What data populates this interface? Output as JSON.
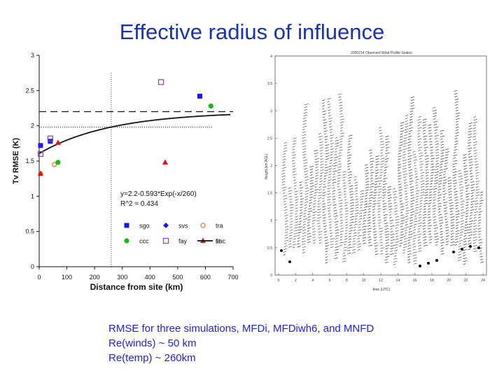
{
  "slide": {
    "title": "Effective radius of influence",
    "caption": [
      "RMSE for three simulations, MFDi, MFDiwh6, and MNFD",
      "Re(winds) ~ 50 km",
      "Re(temp) ~ 260km"
    ]
  },
  "chart_data": [
    {
      "type": "scatter",
      "xlabel": "Distance from site (km)",
      "ylabel": "Tv RMSE (K)",
      "xlim": [
        0,
        700
      ],
      "ylim": [
        0,
        3
      ],
      "xticks": [
        "0",
        "100",
        "200",
        "300",
        "400",
        "500",
        "600",
        "700"
      ],
      "yticks": [
        "0",
        "0.5",
        "1",
        "1.5",
        "2",
        "2.5",
        "3"
      ],
      "grid": false,
      "legend_position": "lower-right",
      "fit_equation": "y=2.2-0.593*Exp(-x/260)",
      "r_squared": "R^2 = 0.434",
      "dashed_levels": [
        2.2
      ],
      "reference": {
        "x": 260,
        "y": 1.98
      },
      "series": [
        {
          "name": "sgo",
          "marker": "square",
          "color": "#1a1aee",
          "points": [
            [
              5,
              1.72
            ],
            [
              40,
              1.78
            ],
            [
              580,
              2.42
            ]
          ]
        },
        {
          "name": "svs",
          "marker": "diamond",
          "color": "#1a1aee",
          "points": []
        },
        {
          "name": "tra",
          "marker": "circle-open",
          "color": "#e07820",
          "points": [
            [
              55,
              1.45
            ],
            [
              5,
              1.32
            ]
          ]
        },
        {
          "name": "ccc",
          "marker": "circle",
          "color": "#18b818",
          "points": [
            [
              68,
              1.48
            ],
            [
              620,
              2.28
            ]
          ]
        },
        {
          "name": "fay",
          "marker": "square-open",
          "color": "#8844aa",
          "points": [
            [
              440,
              2.62
            ],
            [
              40,
              1.82
            ],
            [
              5,
              1.6
            ]
          ]
        },
        {
          "name": "sac",
          "marker": "triangle",
          "color": "#d41818",
          "points": [
            [
              68,
              1.76
            ],
            [
              455,
              1.48
            ],
            [
              5,
              1.32
            ]
          ]
        }
      ],
      "fit": {
        "name": "fit",
        "a": 2.2,
        "b": 0.593,
        "scale": 260,
        "x_range": [
          0,
          690
        ]
      }
    },
    {
      "type": "line",
      "title": "2000214 Observed Wind Profile Station",
      "x_title": "time (UTC)",
      "y_title": "Height (km AGL)",
      "xticks": [
        "0",
        "2",
        "4",
        "6",
        "8",
        "10",
        "12",
        "14",
        "16",
        "18",
        "20",
        "22",
        "24"
      ],
      "yticks": [
        "0",
        "0.5",
        "1",
        "1.5",
        "2",
        "2.5",
        "3",
        "3.5",
        "4"
      ]
    }
  ]
}
